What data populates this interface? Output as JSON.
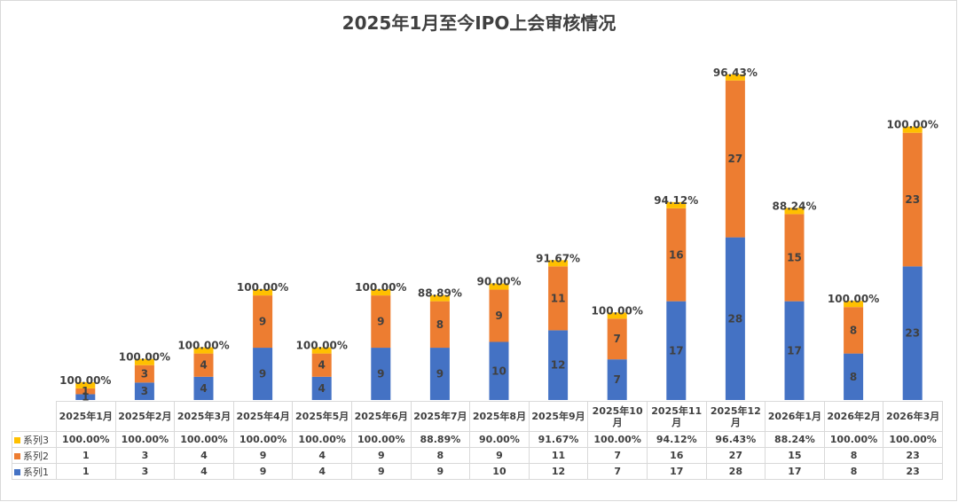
{
  "chart_data": {
    "type": "bar",
    "stacked": true,
    "title": "2025年1月至今IPO上会审核情况",
    "xlabel": "",
    "ylabel": "",
    "ylim": [
      0,
      55
    ],
    "grid": false,
    "legend": "data-table",
    "categories": [
      "2025年1月",
      "2025年2月",
      "2025年3月",
      "2025年4月",
      "2025年5月",
      "2025年6月",
      "2025年7月",
      "2025年8月",
      "2025年9月",
      "2025年10月",
      "2025年11月",
      "2025年12月",
      "2026年1月",
      "2026年2月",
      "2026年3月"
    ],
    "series": [
      {
        "name": "系列1",
        "color": "#4472c4",
        "values": [
          1,
          3,
          4,
          9,
          4,
          9,
          9,
          10,
          12,
          7,
          17,
          28,
          17,
          8,
          23
        ]
      },
      {
        "name": "系列2",
        "color": "#ed7d31",
        "values": [
          1,
          3,
          4,
          9,
          4,
          9,
          8,
          9,
          11,
          7,
          16,
          27,
          15,
          8,
          23
        ]
      },
      {
        "name": "系列3",
        "color": "#ffc000",
        "values": [
          "100.00%",
          "100.00%",
          "100.00%",
          "100.00%",
          "100.00%",
          "100.00%",
          "88.89%",
          "90.00%",
          "91.67%",
          "100.00%",
          "94.12%",
          "96.43%",
          "88.24%",
          "100.00%",
          "100.00%"
        ]
      }
    ],
    "table_row_order": [
      "系列3",
      "系列2",
      "系列1"
    ]
  }
}
